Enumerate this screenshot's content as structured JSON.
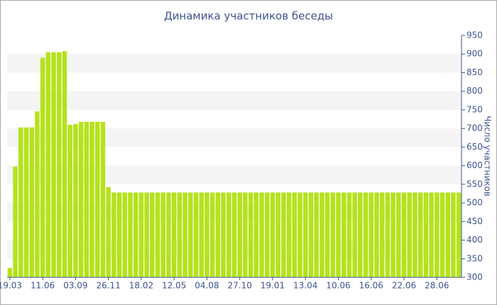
{
  "chart_data": {
    "type": "bar",
    "title": "Динамика участников беседы",
    "y_label": "Число участников",
    "categories": [
      "19.03",
      null,
      null,
      null,
      null,
      null,
      "11.06",
      null,
      null,
      null,
      null,
      null,
      "03.09",
      null,
      null,
      null,
      null,
      null,
      "26.11",
      null,
      null,
      null,
      null,
      null,
      "18.02",
      null,
      null,
      null,
      null,
      null,
      "12.05",
      null,
      null,
      null,
      null,
      null,
      "04.08",
      null,
      null,
      null,
      null,
      null,
      "27.10",
      null,
      null,
      null,
      null,
      null,
      "19.01",
      null,
      null,
      null,
      null,
      null,
      "13.04",
      null,
      null,
      null,
      null,
      null,
      "10.06",
      null,
      null,
      null,
      null,
      null,
      "16.06",
      null,
      null,
      null,
      null,
      null,
      "22.06",
      null,
      null,
      null,
      null,
      null,
      "28.06",
      null,
      null,
      null,
      null
    ],
    "values": [
      325,
      598,
      703,
      703,
      703,
      746,
      890,
      905,
      905,
      905,
      908,
      710,
      712,
      718,
      718,
      718,
      718,
      718,
      542,
      528,
      528,
      528,
      528,
      528,
      528,
      528,
      528,
      528,
      528,
      528,
      528,
      528,
      528,
      528,
      528,
      528,
      528,
      528,
      528,
      528,
      528,
      528,
      528,
      528,
      528,
      528,
      528,
      528,
      528,
      528,
      528,
      528,
      528,
      528,
      528,
      528,
      528,
      528,
      528,
      528,
      528,
      528,
      528,
      528,
      528,
      528,
      528,
      528,
      528,
      528,
      528,
      528,
      528,
      528,
      528,
      528,
      528,
      528,
      528,
      528,
      528,
      528,
      528
    ],
    "color": "#b5e21c",
    "ylim": [
      300,
      950
    ],
    "yticks": [
      300,
      350,
      400,
      450,
      500,
      550,
      600,
      650,
      700,
      750,
      800,
      850,
      900,
      950
    ],
    "y_axis_side": "right",
    "grid": "bands"
  }
}
